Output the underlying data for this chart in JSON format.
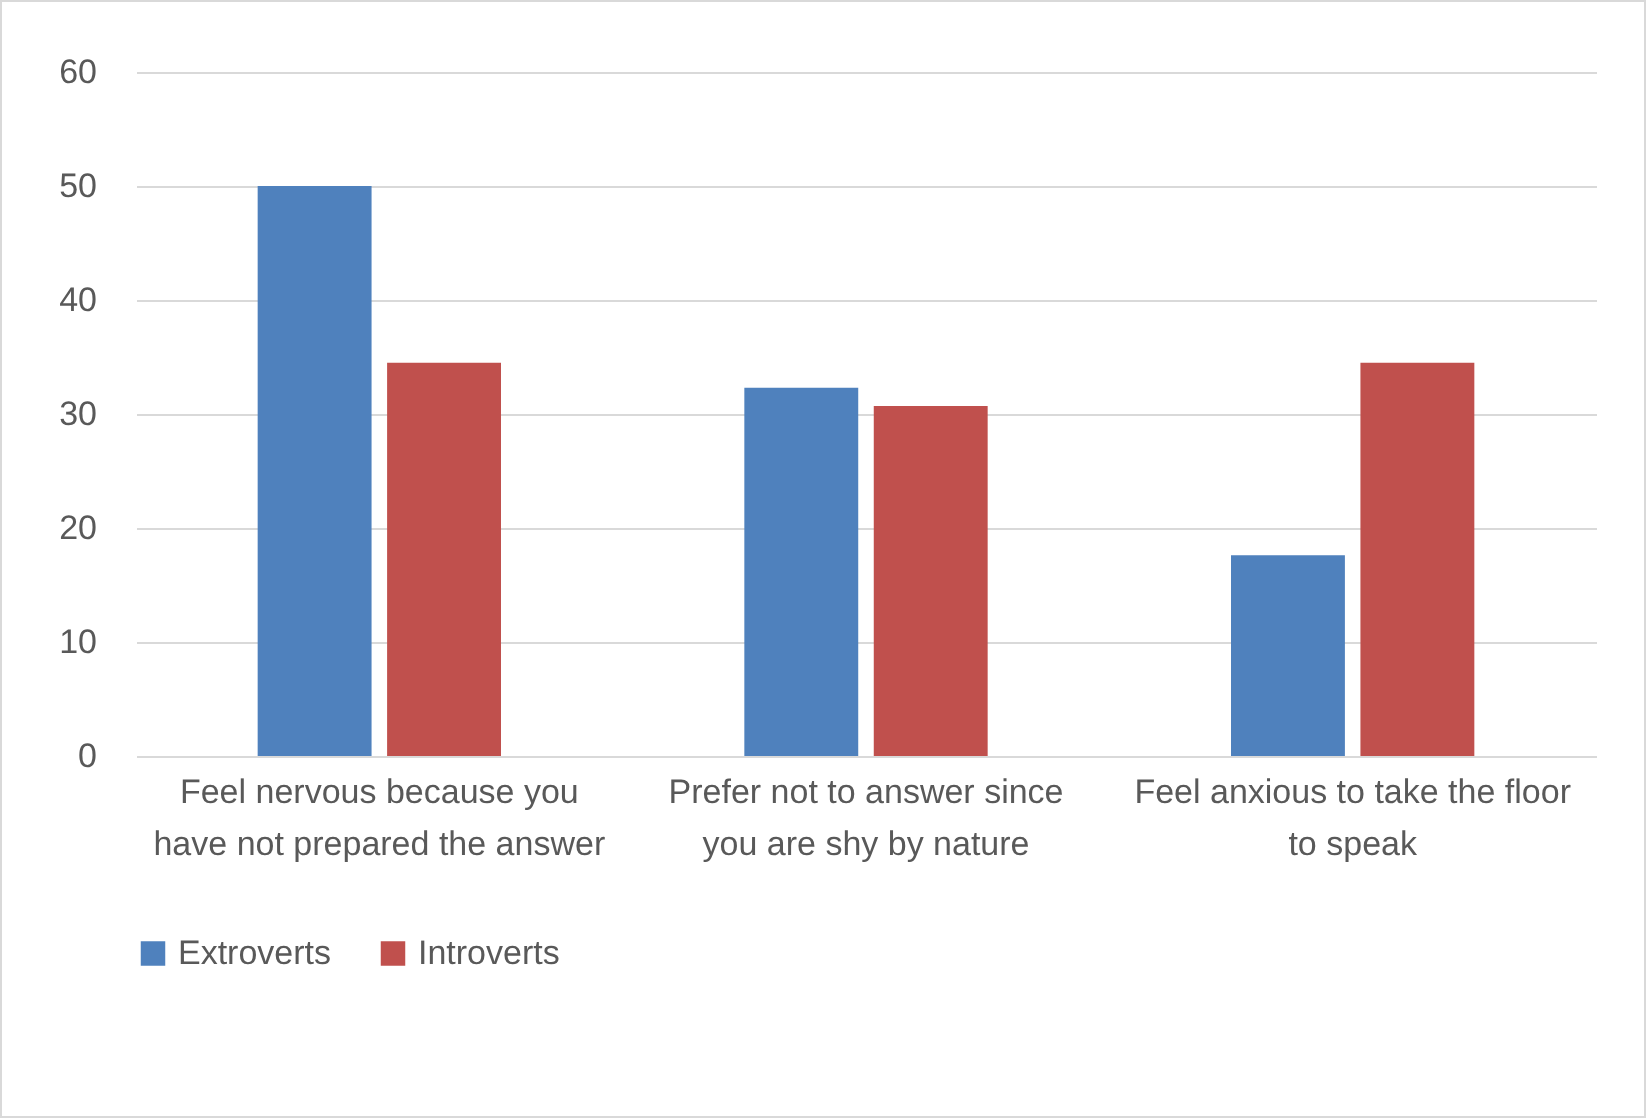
{
  "chart_data": {
    "type": "bar",
    "categories": [
      "Feel nervous because you have not prepared the answer",
      "Prefer not to answer since you are shy by nature",
      "Feel anxious to take the floor to speak"
    ],
    "series": [
      {
        "name": "Extroverts",
        "color": "#4f81bd",
        "values": [
          50,
          32.3,
          17.6
        ]
      },
      {
        "name": "Introverts",
        "color": "#c0504d",
        "values": [
          34.5,
          30.7,
          34.5
        ]
      }
    ],
    "ylim": [
      0,
      60
    ],
    "yticks": [
      0,
      10,
      20,
      30,
      40,
      50,
      60
    ],
    "grid": "y",
    "legend": "bottom"
  }
}
